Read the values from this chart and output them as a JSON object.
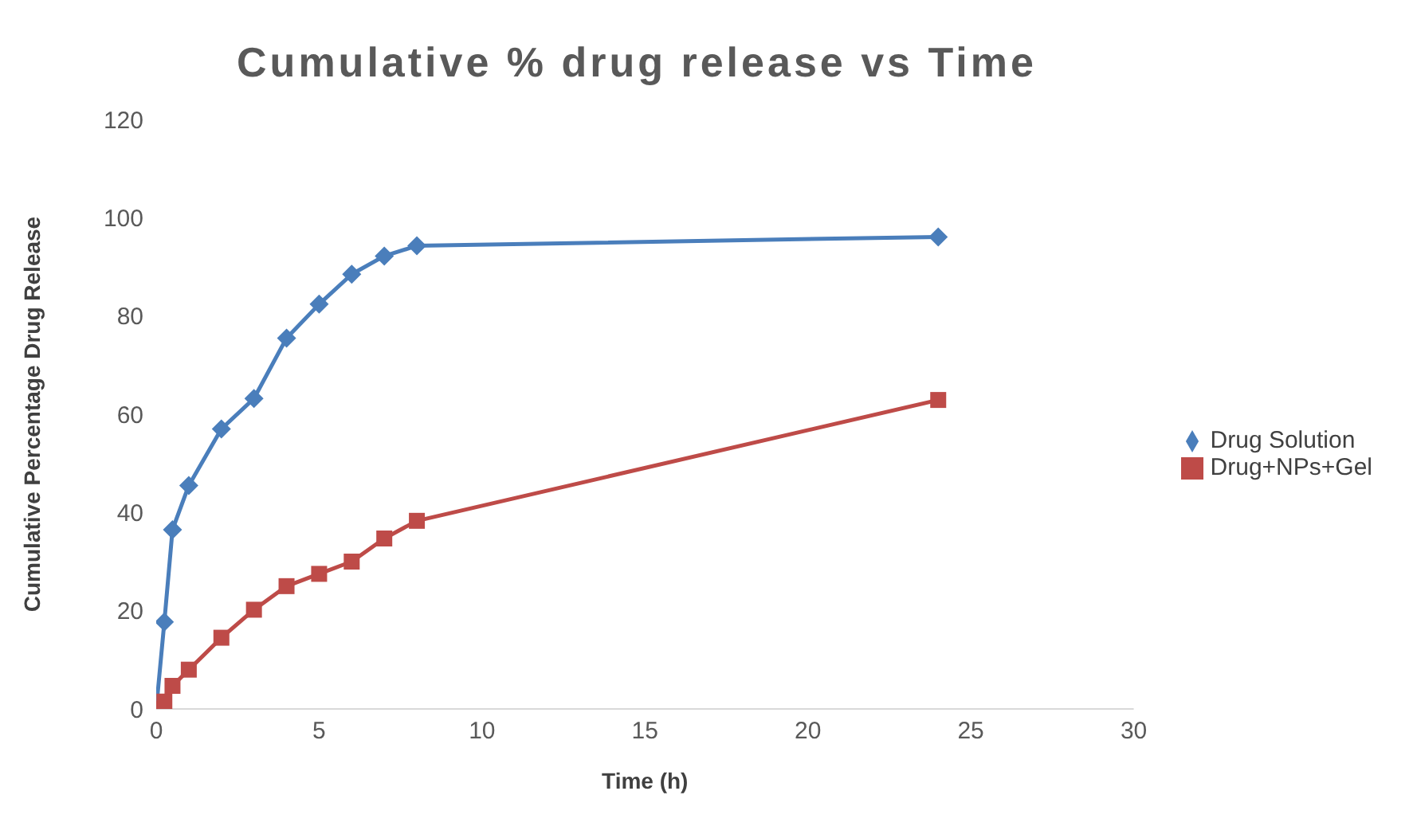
{
  "chart_data": {
    "type": "line",
    "title": "Cumulative % drug release vs Time",
    "xlabel": "Time (h)",
    "ylabel": "Cumulative Percentage Drug Release",
    "xlim": [
      0,
      30
    ],
    "xticks": [
      0,
      5,
      10,
      15,
      20,
      25,
      30
    ],
    "ylim": [
      0,
      120
    ],
    "yticks": [
      0,
      20,
      40,
      60,
      80,
      100,
      120
    ],
    "grid": false,
    "legend": "right",
    "series": [
      {
        "name": "Drug Solution",
        "color": "#4a7ebb",
        "marker": "diamond",
        "x": [
          0,
          0.25,
          0.5,
          1,
          2,
          3,
          4,
          5,
          6,
          7,
          8,
          24
        ],
        "values": [
          0,
          17.7,
          36.5,
          45.5,
          57,
          63.2,
          75.5,
          82.4,
          88.5,
          92.2,
          94.3,
          96.1
        ]
      },
      {
        "name": "Drug+NPs+Gel",
        "color": "#be4b48",
        "marker": "square",
        "x": [
          0,
          0.25,
          0.5,
          1,
          2,
          3,
          4,
          5,
          6,
          7,
          8,
          24
        ],
        "values": [
          0,
          1.5,
          4.7,
          8,
          14.5,
          20.2,
          25,
          27.5,
          30,
          34.7,
          38.3,
          62.9
        ]
      }
    ]
  }
}
